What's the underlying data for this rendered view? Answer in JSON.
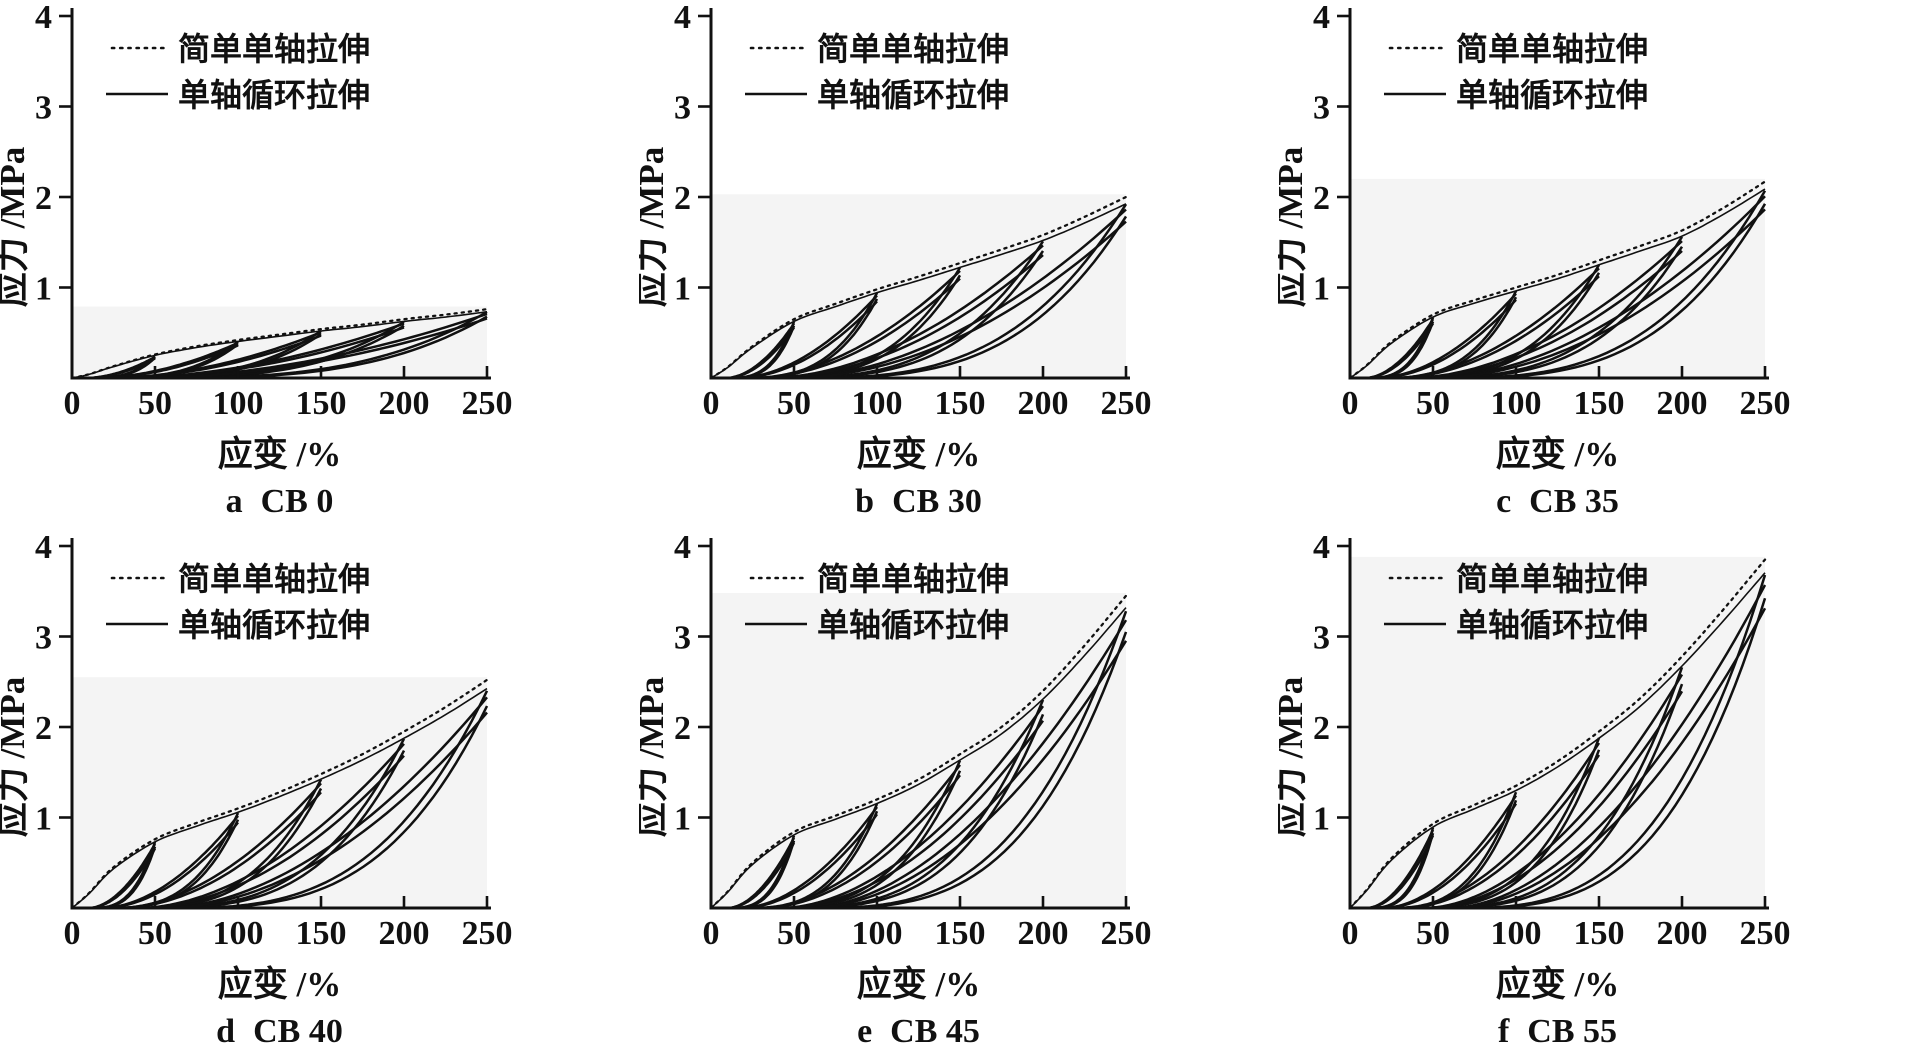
{
  "figure": {
    "background": "#ffffff",
    "ink": "#111111",
    "scan_band_color": "#f4f4f4",
    "rows": 2,
    "cols": 3
  },
  "chart_data": [
    {
      "id": "a",
      "type": "line",
      "caption_index": "a",
      "caption_label": "CB 0",
      "caption": "a CB 0",
      "xlabel": "应变 /%",
      "ylabel": "应力 /MPa",
      "xlim": [
        0,
        250
      ],
      "ylim": [
        0,
        4
      ],
      "xticks": [
        0,
        50,
        100,
        150,
        200,
        250
      ],
      "yticks": [
        1,
        2,
        3,
        4
      ],
      "grid": false,
      "legend_position": "top-left",
      "legend": [
        {
          "label": "简单单轴拉伸",
          "style": "dotted"
        },
        {
          "label": "单轴循环拉伸",
          "style": "solid"
        }
      ],
      "series": [
        {
          "name": "简单单轴拉伸",
          "style": "dotted",
          "role": "simple-uniaxial-tension-envelope",
          "points": [
            [
              0,
              0
            ],
            [
              10,
              0.04
            ],
            [
              25,
              0.13
            ],
            [
              50,
              0.26
            ],
            [
              75,
              0.35
            ],
            [
              100,
              0.42
            ],
            [
              125,
              0.48
            ],
            [
              150,
              0.54
            ],
            [
              175,
              0.59
            ],
            [
              200,
              0.65
            ],
            [
              225,
              0.7
            ],
            [
              250,
              0.76
            ]
          ]
        },
        {
          "name": "单轴循环拉伸",
          "style": "solid",
          "role": "uniaxial-cyclic-tension",
          "cycle_amplitudes": [
            50,
            100,
            150,
            200,
            250
          ],
          "first_cycle_peaks": [
            0.24,
            0.4,
            0.52,
            0.62,
            0.73
          ],
          "residual_strains": [
            8,
            14,
            22,
            30,
            40
          ],
          "cycles_per_amplitude": 3
        }
      ]
    },
    {
      "id": "b",
      "type": "line",
      "caption_index": "b",
      "caption_label": "CB 30",
      "caption": "b CB 30",
      "xlabel": "应变 /%",
      "ylabel": "应力 /MPa",
      "xlim": [
        0,
        250
      ],
      "ylim": [
        0,
        4
      ],
      "xticks": [
        0,
        50,
        100,
        150,
        200,
        250
      ],
      "yticks": [
        1,
        2,
        3,
        4
      ],
      "grid": false,
      "legend_position": "top-left",
      "legend": [
        {
          "label": "简单单轴拉伸",
          "style": "dotted"
        },
        {
          "label": "单轴循环拉伸",
          "style": "solid"
        }
      ],
      "series": [
        {
          "name": "简单单轴拉伸",
          "style": "dotted",
          "role": "simple-uniaxial-tension-envelope",
          "points": [
            [
              0,
              0
            ],
            [
              10,
              0.12
            ],
            [
              25,
              0.35
            ],
            [
              50,
              0.65
            ],
            [
              75,
              0.82
            ],
            [
              100,
              0.98
            ],
            [
              125,
              1.12
            ],
            [
              150,
              1.27
            ],
            [
              175,
              1.42
            ],
            [
              200,
              1.58
            ],
            [
              225,
              1.78
            ],
            [
              250,
              2.0
            ]
          ]
        },
        {
          "name": "单轴循环拉伸",
          "style": "solid",
          "role": "uniaxial-cyclic-tension",
          "cycle_amplitudes": [
            50,
            100,
            150,
            200,
            250
          ],
          "first_cycle_peaks": [
            0.62,
            0.94,
            1.22,
            1.51,
            1.92
          ],
          "residual_strains": [
            9,
            16,
            25,
            35,
            48
          ],
          "cycles_per_amplitude": 3
        }
      ]
    },
    {
      "id": "c",
      "type": "line",
      "caption_index": "c",
      "caption_label": "CB 35",
      "caption": "c CB 35",
      "xlabel": "应变 /%",
      "ylabel": "应力 /MPa",
      "xlim": [
        0,
        250
      ],
      "ylim": [
        0,
        4
      ],
      "xticks": [
        0,
        50,
        100,
        150,
        200,
        250
      ],
      "yticks": [
        1,
        2,
        3,
        4
      ],
      "grid": false,
      "legend_position": "top-left",
      "legend": [
        {
          "label": "简单单轴拉伸",
          "style": "dotted"
        },
        {
          "label": "单轴循环拉伸",
          "style": "solid"
        }
      ],
      "series": [
        {
          "name": "简单单轴拉伸",
          "style": "dotted",
          "role": "simple-uniaxial-tension-envelope",
          "points": [
            [
              0,
              0
            ],
            [
              10,
              0.14
            ],
            [
              25,
              0.4
            ],
            [
              50,
              0.7
            ],
            [
              75,
              0.86
            ],
            [
              100,
              1.0
            ],
            [
              125,
              1.14
            ],
            [
              150,
              1.3
            ],
            [
              175,
              1.46
            ],
            [
              200,
              1.63
            ],
            [
              225,
              1.88
            ],
            [
              250,
              2.17
            ]
          ]
        },
        {
          "name": "单轴循环拉伸",
          "style": "solid",
          "role": "uniaxial-cyclic-tension",
          "cycle_amplitudes": [
            50,
            100,
            150,
            200,
            250
          ],
          "first_cycle_peaks": [
            0.67,
            0.96,
            1.25,
            1.56,
            2.07
          ],
          "residual_strains": [
            9,
            16,
            26,
            36,
            50
          ],
          "cycles_per_amplitude": 3
        }
      ]
    },
    {
      "id": "d",
      "type": "line",
      "caption_index": "d",
      "caption_label": "CB 40",
      "caption": "d CB 40",
      "xlabel": "应变 /%",
      "ylabel": "应力 /MPa",
      "xlim": [
        0,
        250
      ],
      "ylim": [
        0,
        4
      ],
      "xticks": [
        0,
        50,
        100,
        150,
        200,
        250
      ],
      "yticks": [
        1,
        2,
        3,
        4
      ],
      "grid": false,
      "legend_position": "top-left",
      "legend": [
        {
          "label": "简单单轴拉伸",
          "style": "dotted"
        },
        {
          "label": "单轴循环拉伸",
          "style": "solid"
        }
      ],
      "series": [
        {
          "name": "简单单轴拉伸",
          "style": "dotted",
          "role": "simple-uniaxial-tension-envelope",
          "points": [
            [
              0,
              0
            ],
            [
              10,
              0.16
            ],
            [
              25,
              0.45
            ],
            [
              50,
              0.76
            ],
            [
              75,
              0.94
            ],
            [
              100,
              1.1
            ],
            [
              125,
              1.28
            ],
            [
              150,
              1.48
            ],
            [
              175,
              1.7
            ],
            [
              200,
              1.95
            ],
            [
              225,
              2.22
            ],
            [
              250,
              2.52
            ]
          ]
        },
        {
          "name": "单轴循环拉伸",
          "style": "solid",
          "role": "uniaxial-cyclic-tension",
          "cycle_amplitudes": [
            50,
            100,
            150,
            200,
            250
          ],
          "first_cycle_peaks": [
            0.73,
            1.05,
            1.42,
            1.87,
            2.4
          ],
          "residual_strains": [
            10,
            18,
            28,
            40,
            55
          ],
          "cycles_per_amplitude": 3
        }
      ]
    },
    {
      "id": "e",
      "type": "line",
      "caption_index": "e",
      "caption_label": "CB 45",
      "caption": "e CB 45",
      "xlabel": "应变 /%",
      "ylabel": "应力 /MPa",
      "xlim": [
        0,
        250
      ],
      "ylim": [
        0,
        4
      ],
      "xticks": [
        0,
        50,
        100,
        150,
        200,
        250
      ],
      "yticks": [
        1,
        2,
        3,
        4
      ],
      "grid": false,
      "legend_position": "top-left",
      "legend": [
        {
          "label": "简单单轴拉伸",
          "style": "dotted"
        },
        {
          "label": "单轴循环拉伸",
          "style": "solid"
        }
      ],
      "series": [
        {
          "name": "简单单轴拉伸",
          "style": "dotted",
          "role": "simple-uniaxial-tension-envelope",
          "points": [
            [
              0,
              0
            ],
            [
              10,
              0.18
            ],
            [
              25,
              0.5
            ],
            [
              50,
              0.84
            ],
            [
              75,
              1.02
            ],
            [
              100,
              1.2
            ],
            [
              125,
              1.42
            ],
            [
              150,
              1.7
            ],
            [
              175,
              2.0
            ],
            [
              200,
              2.4
            ],
            [
              225,
              2.9
            ],
            [
              250,
              3.45
            ]
          ]
        },
        {
          "name": "单轴循环拉伸",
          "style": "solid",
          "role": "uniaxial-cyclic-tension",
          "cycle_amplitudes": [
            50,
            100,
            150,
            200,
            250
          ],
          "first_cycle_peaks": [
            0.8,
            1.15,
            1.63,
            2.3,
            3.28
          ],
          "residual_strains": [
            10,
            18,
            30,
            42,
            58
          ],
          "cycles_per_amplitude": 3
        }
      ]
    },
    {
      "id": "f",
      "type": "line",
      "caption_index": "f",
      "caption_label": "CB 55",
      "caption": "f CB 55",
      "xlabel": "应变 /%",
      "ylabel": "应力 /MPa",
      "xlim": [
        0,
        250
      ],
      "ylim": [
        0,
        4
      ],
      "xticks": [
        0,
        50,
        100,
        150,
        200,
        250
      ],
      "yticks": [
        1,
        2,
        3,
        4
      ],
      "grid": false,
      "legend_position": "top-left",
      "legend": [
        {
          "label": "简单单轴拉伸",
          "style": "dotted"
        },
        {
          "label": "单轴循环拉伸",
          "style": "solid"
        }
      ],
      "series": [
        {
          "name": "简单单轴拉伸",
          "style": "dotted",
          "role": "simple-uniaxial-tension-envelope",
          "points": [
            [
              0,
              0
            ],
            [
              10,
              0.2
            ],
            [
              25,
              0.55
            ],
            [
              50,
              0.93
            ],
            [
              75,
              1.14
            ],
            [
              100,
              1.35
            ],
            [
              125,
              1.62
            ],
            [
              150,
              1.95
            ],
            [
              175,
              2.32
            ],
            [
              200,
              2.78
            ],
            [
              225,
              3.3
            ],
            [
              250,
              3.85
            ]
          ]
        },
        {
          "name": "单轴循环拉伸",
          "style": "solid",
          "role": "uniaxial-cyclic-tension",
          "cycle_amplitudes": [
            50,
            100,
            150,
            200,
            250
          ],
          "first_cycle_peaks": [
            0.89,
            1.28,
            1.88,
            2.66,
            3.68
          ],
          "residual_strains": [
            10,
            20,
            32,
            45,
            60
          ],
          "cycles_per_amplitude": 3
        }
      ]
    }
  ]
}
